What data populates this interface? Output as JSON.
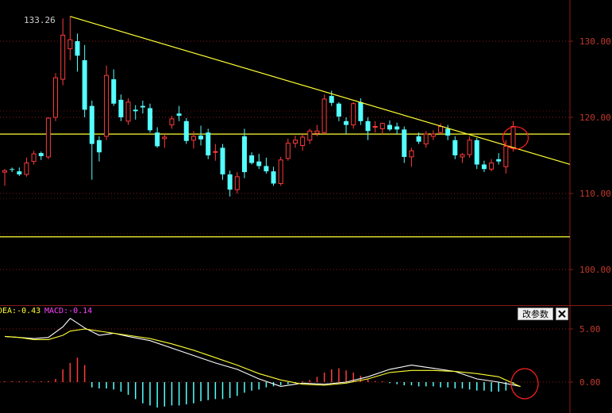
{
  "peak_label": "133.26",
  "indicator_bar": {
    "dea_label": "DEA:-0.43",
    "macd_label": "MACD:-0.14"
  },
  "buttons": {
    "params_label": "改参数"
  },
  "colors": {
    "background": "#000000",
    "up": "#ff3b3b",
    "down": "#54ffff",
    "dif_line": "#ffffff",
    "dea_line": "#ffff33",
    "trendline": "#ffff33",
    "axis_text": "#c0392b",
    "dea_text": "#ffff33",
    "macd_text": "#ff44ff"
  },
  "chart_data": [
    {
      "type": "candlestick",
      "y_ticks": [
        {
          "value": 130,
          "label": "130.00"
        },
        {
          "value": 120,
          "label": "120.00"
        },
        {
          "value": 110,
          "label": "110.00"
        },
        {
          "value": 100,
          "label": "100.00"
        }
      ],
      "ylim": [
        96,
        135.5
      ],
      "candles": [
        [
          112.8,
          113.2,
          111.0,
          113.0
        ],
        [
          113.2,
          113.4,
          112.8,
          113.1
        ],
        [
          112.9,
          113.4,
          112.3,
          112.5
        ],
        [
          112.5,
          114.7,
          112.2,
          114.0
        ],
        [
          114.2,
          115.6,
          113.8,
          115.2
        ],
        [
          115.3,
          115.5,
          114.4,
          114.9
        ],
        [
          114.8,
          120.0,
          114.5,
          119.9
        ],
        [
          120.0,
          125.8,
          119.5,
          125.2
        ],
        [
          125.0,
          133.0,
          124.2,
          130.8
        ],
        [
          129.0,
          133.26,
          127.5,
          130.2
        ],
        [
          130.0,
          131.0,
          126.0,
          128.1
        ],
        [
          127.5,
          129.5,
          120.0,
          121.0
        ],
        [
          121.5,
          122.2,
          111.8,
          116.5
        ],
        [
          117.0,
          117.5,
          114.2,
          115.4
        ],
        [
          117.5,
          126.8,
          117.0,
          125.5
        ],
        [
          125.0,
          126.3,
          121.5,
          121.8
        ],
        [
          122.3,
          123.0,
          119.5,
          120.0
        ],
        [
          119.5,
          122.5,
          119.0,
          122.0
        ],
        [
          121.0,
          121.6,
          119.7,
          120.8
        ],
        [
          121.5,
          122.2,
          120.5,
          121.3
        ],
        [
          121.2,
          121.8,
          118.0,
          118.3
        ],
        [
          118.0,
          118.7,
          116.0,
          116.2
        ],
        [
          117.2,
          117.8,
          116.0,
          117.4
        ],
        [
          119.0,
          120.2,
          118.5,
          119.8
        ],
        [
          120.5,
          121.5,
          119.5,
          120.2
        ],
        [
          119.5,
          119.9,
          116.5,
          116.9
        ],
        [
          117.0,
          118.2,
          115.9,
          117.5
        ],
        [
          117.6,
          118.9,
          116.3,
          117.1
        ],
        [
          118.0,
          118.5,
          114.5,
          115.0
        ],
        [
          115.5,
          116.5,
          114.3,
          115.5
        ],
        [
          116.0,
          116.5,
          111.8,
          112.5
        ],
        [
          112.5,
          113.0,
          109.6,
          110.5
        ],
        [
          110.5,
          112.8,
          110.0,
          112.2
        ],
        [
          117.5,
          118.5,
          112.0,
          112.8
        ],
        [
          115.0,
          115.4,
          113.8,
          114.0
        ],
        [
          114.2,
          115.2,
          113.2,
          113.6
        ],
        [
          113.6,
          114.7,
          112.6,
          112.9
        ],
        [
          112.9,
          113.5,
          111.0,
          111.3
        ],
        [
          111.3,
          114.8,
          111.0,
          114.4
        ],
        [
          114.6,
          117.2,
          114.3,
          116.6
        ],
        [
          116.6,
          117.6,
          116.0,
          117.0
        ],
        [
          116.3,
          117.8,
          115.6,
          117.4
        ],
        [
          117.0,
          118.5,
          116.5,
          118.2
        ],
        [
          117.9,
          119.0,
          117.5,
          118.2
        ],
        [
          118.0,
          123.0,
          117.8,
          122.4
        ],
        [
          122.8,
          123.5,
          121.5,
          121.9
        ],
        [
          121.8,
          122.0,
          119.5,
          120.1
        ],
        [
          119.5,
          120.0,
          117.8,
          119.0
        ],
        [
          119.0,
          122.0,
          118.5,
          121.8
        ],
        [
          122.0,
          122.5,
          119.0,
          119.5
        ],
        [
          119.5,
          120.0,
          117.0,
          118.2
        ],
        [
          118.8,
          119.5,
          118.0,
          118.8
        ],
        [
          118.5,
          119.3,
          117.8,
          119.2
        ],
        [
          119.0,
          119.6,
          118.2,
          118.4
        ],
        [
          118.8,
          119.3,
          117.8,
          118.4
        ],
        [
          118.4,
          118.8,
          114.0,
          114.8
        ],
        [
          114.8,
          116.0,
          113.5,
          115.6
        ],
        [
          117.5,
          118.0,
          116.5,
          116.8
        ],
        [
          116.5,
          118.2,
          116.0,
          117.8
        ],
        [
          117.5,
          118.3,
          117.0,
          117.8
        ],
        [
          118.0,
          119.2,
          117.8,
          118.8
        ],
        [
          118.5,
          119.0,
          117.0,
          117.6
        ],
        [
          117.0,
          117.5,
          114.5,
          115.0
        ],
        [
          114.8,
          115.3,
          114.0,
          115.1
        ],
        [
          115.1,
          117.5,
          114.7,
          117.0
        ],
        [
          117.0,
          117.3,
          113.2,
          113.8
        ],
        [
          113.8,
          114.3,
          112.8,
          113.2
        ],
        [
          113.2,
          114.5,
          112.9,
          114.0
        ],
        [
          114.5,
          115.3,
          113.8,
          114.2
        ],
        [
          113.5,
          117.0,
          112.6,
          116.2
        ],
        [
          116.0,
          119.5,
          115.5,
          118.8
        ]
      ],
      "horizontal_lines": [
        117.8,
        104.3
      ],
      "trendline": {
        "from": [
          9,
          133.26
        ],
        "to": [
          74,
          114.9
        ]
      }
    },
    {
      "type": "line",
      "name": "MACD",
      "y_ticks": [
        {
          "value": 5,
          "label": "5.00"
        },
        {
          "value": 0,
          "label": "0.00"
        }
      ],
      "ylim": [
        -3,
        7
      ],
      "x": [
        0,
        2,
        4,
        6,
        8,
        9,
        11,
        13,
        15,
        17,
        20,
        23,
        26,
        29,
        32,
        35,
        38,
        41,
        44,
        47,
        50,
        53,
        56,
        59,
        62,
        65,
        68,
        71
      ],
      "series": [
        {
          "name": "DIF",
          "values": [
            4.3,
            4.2,
            4.1,
            4.2,
            5.2,
            6.0,
            5.1,
            4.4,
            4.6,
            4.3,
            3.9,
            3.2,
            2.5,
            1.8,
            1.2,
            0.3,
            -0.4,
            -0.1,
            -0.2,
            0.0,
            0.5,
            1.2,
            1.6,
            1.3,
            1.0,
            0.3,
            0.0,
            -0.4
          ]
        },
        {
          "name": "DEA",
          "values": [
            4.3,
            4.2,
            4.0,
            4.0,
            4.4,
            4.8,
            5.0,
            4.8,
            4.6,
            4.4,
            4.1,
            3.6,
            3.0,
            2.3,
            1.6,
            0.8,
            0.2,
            -0.2,
            -0.3,
            -0.1,
            0.3,
            0.9,
            1.1,
            1.1,
            1.0,
            0.8,
            0.5,
            -0.43
          ]
        }
      ],
      "histogram": [
        0.0,
        0.0,
        0.0,
        0.0,
        0.0,
        0.0,
        0.1,
        0.3,
        1.2,
        1.8,
        2.3,
        1.6,
        -0.5,
        -0.6,
        -0.6,
        -0.7,
        -0.9,
        -1.2,
        -1.6,
        -2.0,
        -2.2,
        -2.4,
        -2.3,
        -2.2,
        -2.2,
        -2.1,
        -2.0,
        -1.8,
        -1.7,
        -1.6,
        -1.6,
        -1.5,
        -1.3,
        -1.0,
        -0.8,
        -0.7,
        -0.5,
        -0.4,
        -0.3,
        -0.2,
        -0.1,
        0.0,
        0.2,
        0.5,
        0.9,
        1.2,
        1.3,
        1.1,
        0.9,
        0.6,
        0.3,
        0.1,
        0.0,
        -0.1,
        -0.2,
        -0.3,
        -0.3,
        -0.4,
        -0.4,
        -0.4,
        -0.5,
        -0.5,
        -0.6,
        -0.6,
        -0.7,
        -0.8,
        -0.8,
        -0.9,
        -0.9,
        -0.8,
        -0.14
      ]
    }
  ]
}
